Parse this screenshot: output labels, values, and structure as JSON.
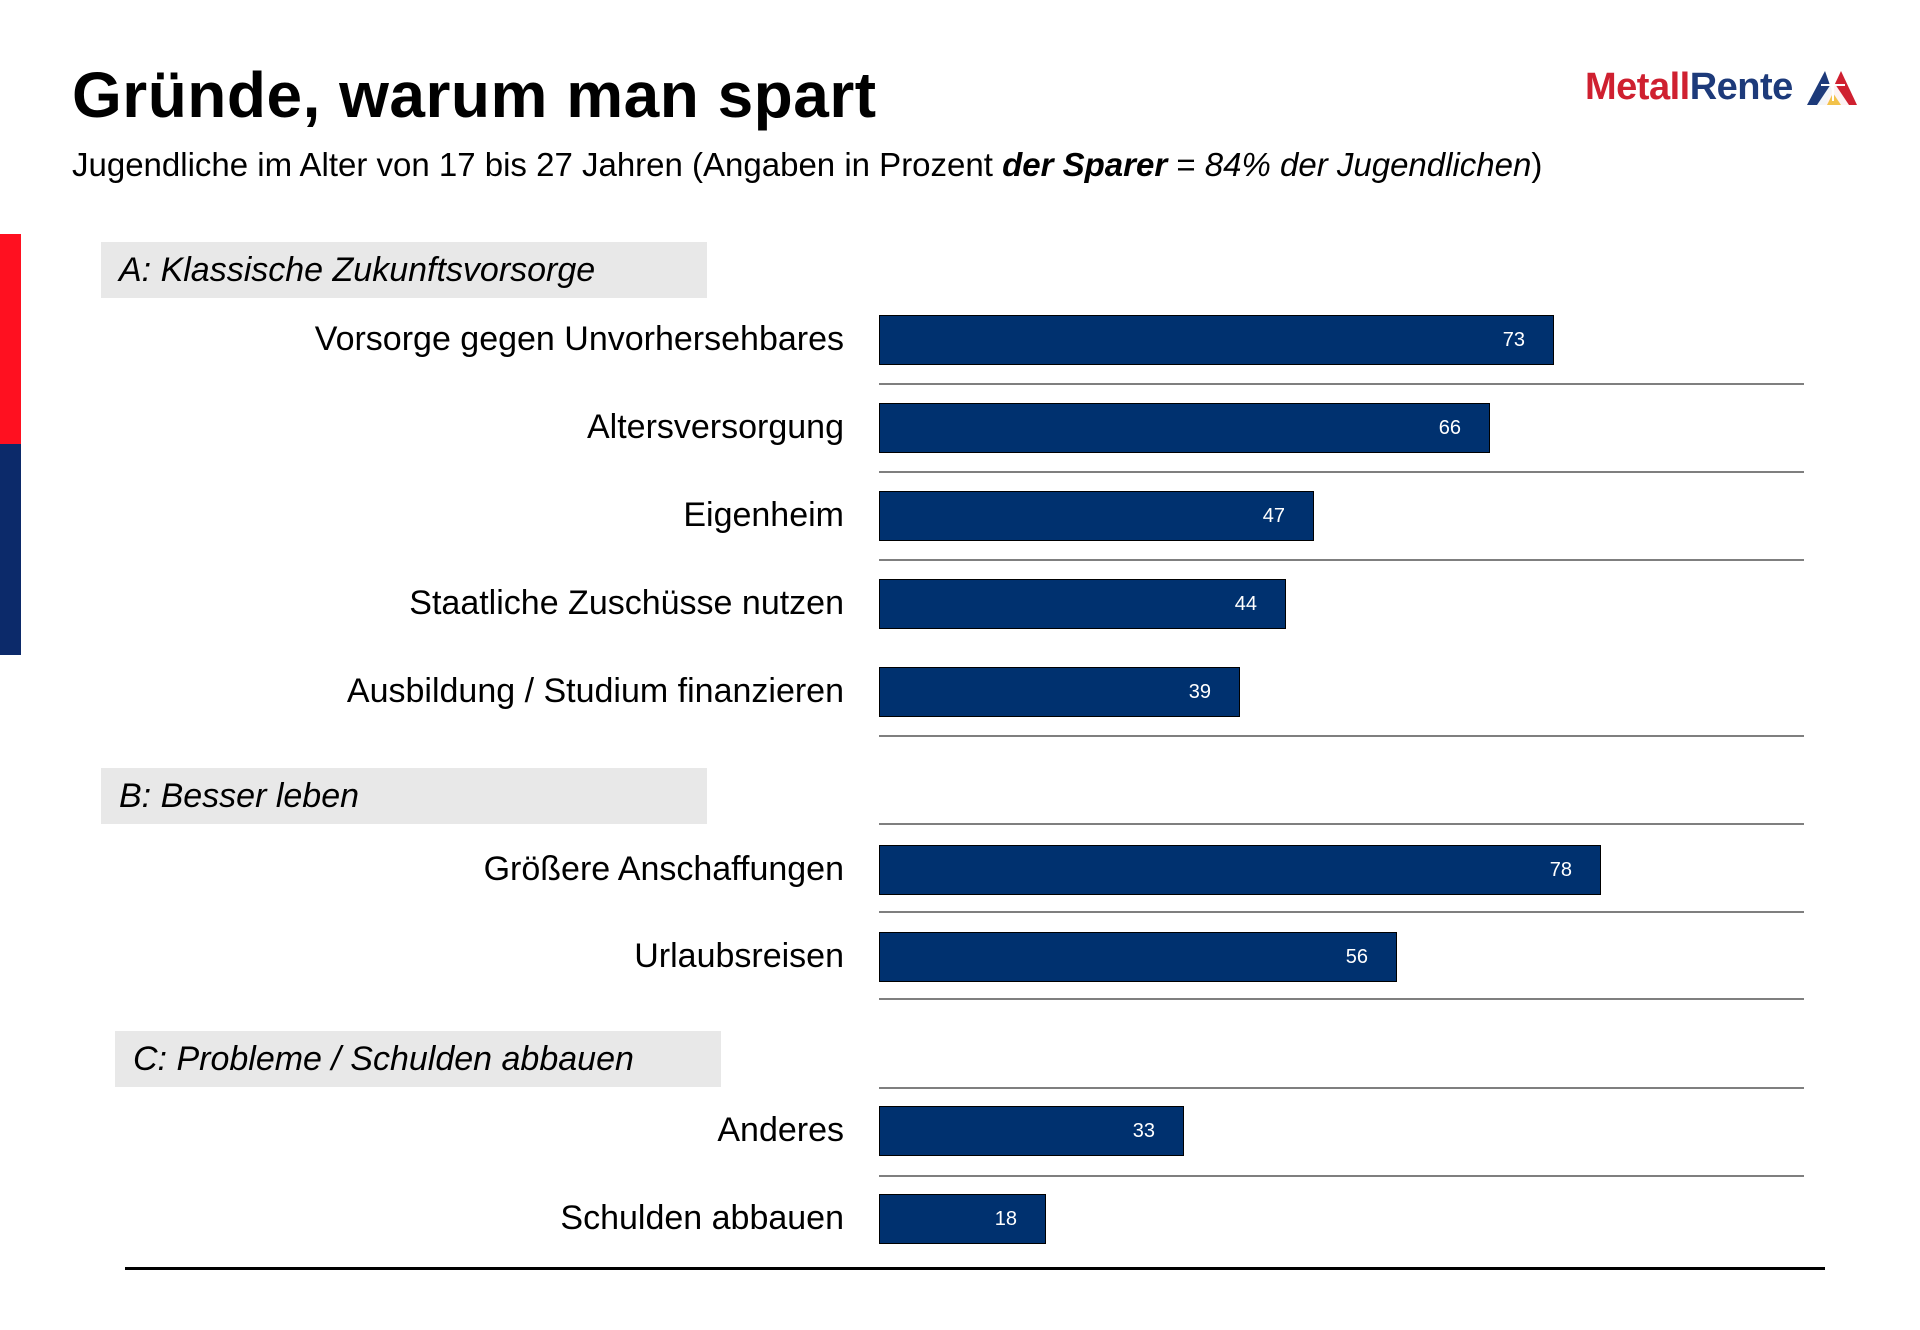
{
  "header": {
    "title": "Gründe, warum man spart",
    "subtitle_part1": "Jugendliche im Alter von 17 bis 27 Jahren (Angaben in Prozent ",
    "subtitle_bold": "der Sparer",
    "subtitle_part2": " = ",
    "subtitle_italic": "84% der Jugendlichen",
    "subtitle_part3": ")"
  },
  "logo": {
    "text_a": "Metall",
    "text_b": "Rente",
    "icon": "triangle-logo-icon"
  },
  "colors": {
    "bar": "#00316f",
    "accent_red": "#ff1020",
    "accent_blue": "#0c2a6a",
    "section_bg": "#e8e8e8"
  },
  "chart_data": {
    "type": "bar",
    "orientation": "horizontal",
    "title": "Gründe, warum man spart",
    "xlim": [
      0,
      100
    ],
    "grid": false,
    "groups": [
      {
        "label": "A: Klassische Zukunftsvorsorge",
        "categories": [
          "Vorsorge gegen Unvorhersehbares",
          "Altersversorgung",
          "Eigenheim",
          "Staatliche Zuschüsse nutzen",
          "Ausbildung / Studium finanzieren"
        ],
        "values": [
          73,
          66,
          47,
          44,
          39
        ]
      },
      {
        "label": "B: Besser leben",
        "categories": [
          "Größere Anschaffungen",
          "Urlaubsreisen"
        ],
        "values": [
          78,
          56
        ]
      },
      {
        "label": "C: Probleme / Schulden abbauen",
        "categories": [
          "Anderes",
          "Schulden abbauen"
        ],
        "values": [
          33,
          18
        ]
      }
    ]
  }
}
